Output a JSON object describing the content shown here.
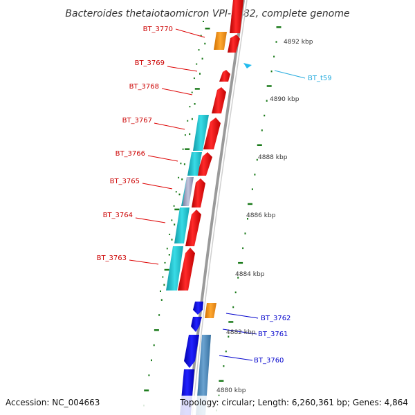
{
  "title": "Bacteroides thetaiotaomicron VPI-5482, complete genome",
  "footer": {
    "accession": "Accession: NC_004663",
    "topology": "Topology: circular; Length: 6,260,361 bp; Genes: 4,864"
  },
  "kbp_labels": [
    "4892 kbp",
    "4890 kbp",
    "4888 kbp",
    "4886 kbp",
    "4884 kbp",
    "4882 kbp",
    "4880 kbp"
  ],
  "colors": {
    "red_gene": "#ff1a1a",
    "cyan_gene": "#1fc8d6",
    "blue_gene": "#1010e8",
    "orange_gene": "#f4961e",
    "steel_gene": "#4a86b8",
    "gray_gene": "#9ba0c0",
    "tick_green": "#1a7a1a",
    "backbone": "#888888"
  },
  "genes": [
    {
      "label": "BT_3770",
      "color": "#cc0000"
    },
    {
      "label": "BT_3769",
      "color": "#cc0000"
    },
    {
      "label": "BT_3768",
      "color": "#cc0000"
    },
    {
      "label": "BT_3767",
      "color": "#cc0000"
    },
    {
      "label": "BT_3766",
      "color": "#cc0000"
    },
    {
      "label": "BT_3765",
      "color": "#cc0000"
    },
    {
      "label": "BT_3764",
      "color": "#cc0000"
    },
    {
      "label": "BT_3763",
      "color": "#cc0000"
    },
    {
      "label": "BT_t59",
      "color": "#22aadd"
    },
    {
      "label": "BT_3762",
      "color": "#0000cc"
    },
    {
      "label": "BT_3761",
      "color": "#0000cc"
    },
    {
      "label": "BT_3760",
      "color": "#0000cc"
    }
  ]
}
